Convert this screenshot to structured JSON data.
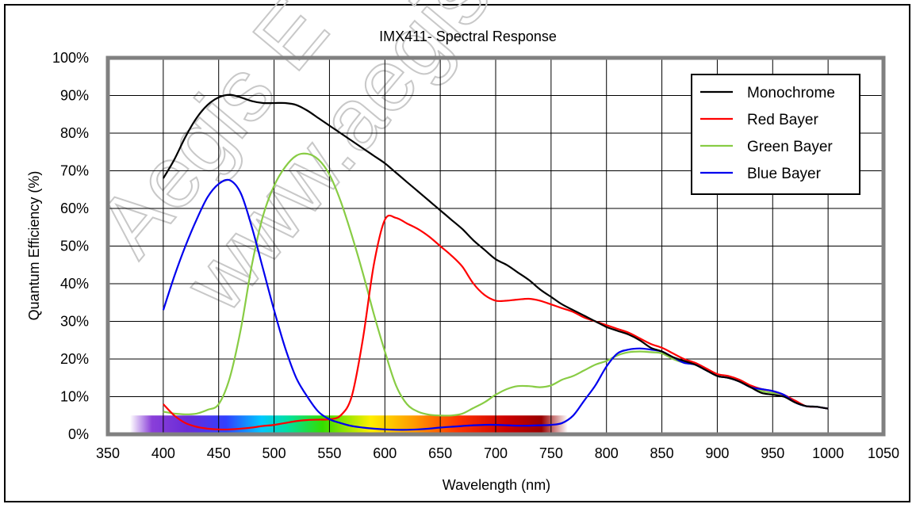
{
  "chart_data": {
    "type": "line",
    "title": "IMX411- Spectral Response",
    "xlabel": "Wavelength (nm)",
    "ylabel": "Quantum Efficiency (%)",
    "xlim": [
      350,
      1050
    ],
    "ylim": [
      0,
      100
    ],
    "x_ticks": [
      350,
      400,
      450,
      500,
      550,
      600,
      650,
      700,
      750,
      800,
      850,
      900,
      950,
      1000,
      1050
    ],
    "y_ticks": [
      0,
      10,
      20,
      30,
      40,
      50,
      60,
      70,
      80,
      90,
      100
    ],
    "x_tick_labels": [
      "350",
      "400",
      "450",
      "500",
      "550",
      "600",
      "650",
      "700",
      "750",
      "800",
      "850",
      "900",
      "950",
      "1000",
      "1050"
    ],
    "y_tick_labels": [
      "0%",
      "10%",
      "20%",
      "30%",
      "40%",
      "50%",
      "60%",
      "70%",
      "80%",
      "90%",
      "100%"
    ],
    "grid": true,
    "legend_position": "top-right",
    "spectrum_band": [
      370,
      765
    ],
    "watermark": [
      "Aegis E",
      "www.aegis"
    ],
    "series": [
      {
        "name": "Monochrome",
        "color": "#000000",
        "points": [
          [
            400,
            68
          ],
          [
            410,
            73
          ],
          [
            420,
            79
          ],
          [
            430,
            84
          ],
          [
            440,
            87.5
          ],
          [
            450,
            89.5
          ],
          [
            460,
            90.2
          ],
          [
            470,
            89.5
          ],
          [
            480,
            88.5
          ],
          [
            490,
            88
          ],
          [
            500,
            88
          ],
          [
            510,
            88
          ],
          [
            520,
            87.5
          ],
          [
            530,
            86
          ],
          [
            540,
            84
          ],
          [
            550,
            82
          ],
          [
            560,
            80
          ],
          [
            570,
            78
          ],
          [
            580,
            76
          ],
          [
            590,
            74
          ],
          [
            600,
            72
          ],
          [
            610,
            69.5
          ],
          [
            620,
            67
          ],
          [
            630,
            64.5
          ],
          [
            640,
            62
          ],
          [
            650,
            59.5
          ],
          [
            660,
            57
          ],
          [
            670,
            54.5
          ],
          [
            680,
            51.5
          ],
          [
            690,
            49
          ],
          [
            700,
            46.5
          ],
          [
            710,
            45
          ],
          [
            720,
            43
          ],
          [
            730,
            41
          ],
          [
            740,
            38.5
          ],
          [
            750,
            36.5
          ],
          [
            760,
            34.5
          ],
          [
            770,
            33
          ],
          [
            780,
            31.5
          ],
          [
            790,
            30
          ],
          [
            800,
            28.5
          ],
          [
            810,
            27.5
          ],
          [
            820,
            26.5
          ],
          [
            830,
            25
          ],
          [
            840,
            23
          ],
          [
            850,
            22
          ],
          [
            860,
            20.5
          ],
          [
            870,
            19.5
          ],
          [
            880,
            18.5
          ],
          [
            890,
            17
          ],
          [
            900,
            15.5
          ],
          [
            910,
            15
          ],
          [
            920,
            14
          ],
          [
            930,
            12.5
          ],
          [
            940,
            11
          ],
          [
            950,
            10.5
          ],
          [
            960,
            10
          ],
          [
            970,
            8.5
          ],
          [
            980,
            7.5
          ],
          [
            990,
            7.3
          ],
          [
            1000,
            6.8
          ]
        ]
      },
      {
        "name": "Red Bayer",
        "color": "#ff0000",
        "points": [
          [
            400,
            8
          ],
          [
            410,
            5
          ],
          [
            420,
            3
          ],
          [
            430,
            2
          ],
          [
            440,
            1.5
          ],
          [
            450,
            1.3
          ],
          [
            460,
            1.3
          ],
          [
            470,
            1.5
          ],
          [
            480,
            1.8
          ],
          [
            490,
            2.2
          ],
          [
            500,
            2.5
          ],
          [
            510,
            3
          ],
          [
            520,
            3.5
          ],
          [
            530,
            3.8
          ],
          [
            540,
            3.9
          ],
          [
            550,
            4
          ],
          [
            560,
            5
          ],
          [
            570,
            10
          ],
          [
            580,
            25
          ],
          [
            590,
            45
          ],
          [
            600,
            57
          ],
          [
            610,
            57.5
          ],
          [
            620,
            56
          ],
          [
            630,
            54.5
          ],
          [
            640,
            52.5
          ],
          [
            650,
            50
          ],
          [
            660,
            47.5
          ],
          [
            670,
            44.5
          ],
          [
            680,
            40
          ],
          [
            690,
            37
          ],
          [
            700,
            35.5
          ],
          [
            710,
            35.5
          ],
          [
            720,
            35.8
          ],
          [
            730,
            36
          ],
          [
            740,
            35.5
          ],
          [
            750,
            34.5
          ],
          [
            760,
            33.5
          ],
          [
            770,
            32.5
          ],
          [
            780,
            31
          ],
          [
            790,
            30
          ],
          [
            800,
            29
          ],
          [
            810,
            28
          ],
          [
            820,
            27
          ],
          [
            830,
            25.5
          ],
          [
            840,
            24
          ],
          [
            850,
            23
          ],
          [
            860,
            21.5
          ],
          [
            870,
            20
          ],
          [
            880,
            19
          ],
          [
            890,
            17.5
          ],
          [
            900,
            16
          ],
          [
            910,
            15.5
          ],
          [
            920,
            14.5
          ],
          [
            930,
            13
          ],
          [
            940,
            12
          ],
          [
            950,
            11.5
          ],
          [
            960,
            10.5
          ],
          [
            970,
            9
          ],
          [
            980,
            7.5
          ],
          [
            990,
            7.3
          ],
          [
            1000,
            6.8
          ]
        ]
      },
      {
        "name": "Green Bayer",
        "color": "#88cc44",
        "points": [
          [
            400,
            6
          ],
          [
            410,
            5.5
          ],
          [
            420,
            5.3
          ],
          [
            430,
            5.5
          ],
          [
            440,
            6.5
          ],
          [
            450,
            8
          ],
          [
            460,
            15
          ],
          [
            470,
            28
          ],
          [
            480,
            45
          ],
          [
            490,
            58
          ],
          [
            500,
            66
          ],
          [
            510,
            71
          ],
          [
            520,
            74
          ],
          [
            530,
            74.5
          ],
          [
            540,
            73
          ],
          [
            550,
            69
          ],
          [
            560,
            62
          ],
          [
            570,
            53
          ],
          [
            580,
            43
          ],
          [
            590,
            32
          ],
          [
            600,
            22
          ],
          [
            610,
            13
          ],
          [
            620,
            8
          ],
          [
            630,
            6
          ],
          [
            640,
            5.2
          ],
          [
            650,
            5
          ],
          [
            660,
            5
          ],
          [
            670,
            5.5
          ],
          [
            680,
            7
          ],
          [
            690,
            8.5
          ],
          [
            700,
            10.5
          ],
          [
            710,
            12
          ],
          [
            720,
            12.8
          ],
          [
            730,
            12.8
          ],
          [
            740,
            12.5
          ],
          [
            750,
            13
          ],
          [
            760,
            14.5
          ],
          [
            770,
            15.5
          ],
          [
            780,
            17
          ],
          [
            790,
            18.5
          ],
          [
            800,
            19.5
          ],
          [
            810,
            21
          ],
          [
            820,
            21.8
          ],
          [
            830,
            22
          ],
          [
            840,
            21.8
          ],
          [
            850,
            21.5
          ],
          [
            860,
            20
          ],
          [
            870,
            19
          ],
          [
            880,
            18.5
          ],
          [
            890,
            17
          ],
          [
            900,
            15.5
          ],
          [
            910,
            15
          ],
          [
            920,
            14
          ],
          [
            930,
            12.5
          ],
          [
            940,
            11.5
          ],
          [
            950,
            11
          ],
          [
            960,
            10.5
          ],
          [
            970,
            8.5
          ],
          [
            980,
            7.5
          ],
          [
            990,
            7.3
          ],
          [
            1000,
            6.8
          ]
        ]
      },
      {
        "name": "Blue Bayer",
        "color": "#0000ee",
        "points": [
          [
            400,
            33
          ],
          [
            410,
            42
          ],
          [
            420,
            50
          ],
          [
            430,
            57
          ],
          [
            440,
            63
          ],
          [
            450,
            66.5
          ],
          [
            460,
            67.5
          ],
          [
            470,
            64
          ],
          [
            480,
            55
          ],
          [
            490,
            44
          ],
          [
            500,
            33
          ],
          [
            510,
            23
          ],
          [
            520,
            15
          ],
          [
            530,
            10
          ],
          [
            540,
            6
          ],
          [
            550,
            4
          ],
          [
            560,
            3
          ],
          [
            570,
            2.2
          ],
          [
            580,
            1.8
          ],
          [
            590,
            1.5
          ],
          [
            600,
            1.3
          ],
          [
            610,
            1.2
          ],
          [
            620,
            1.2
          ],
          [
            630,
            1.3
          ],
          [
            640,
            1.5
          ],
          [
            650,
            1.8
          ],
          [
            660,
            2
          ],
          [
            670,
            2.2
          ],
          [
            680,
            2.4
          ],
          [
            690,
            2.5
          ],
          [
            700,
            2.5
          ],
          [
            710,
            2.4
          ],
          [
            720,
            2.3
          ],
          [
            730,
            2.3
          ],
          [
            740,
            2.4
          ],
          [
            750,
            2.5
          ],
          [
            760,
            3
          ],
          [
            770,
            5
          ],
          [
            780,
            9
          ],
          [
            790,
            13
          ],
          [
            800,
            18
          ],
          [
            810,
            21.5
          ],
          [
            820,
            22.5
          ],
          [
            830,
            22.8
          ],
          [
            840,
            22.5
          ],
          [
            850,
            22
          ],
          [
            860,
            20.5
          ],
          [
            870,
            19
          ],
          [
            880,
            18.5
          ],
          [
            890,
            17
          ],
          [
            900,
            15.5
          ],
          [
            910,
            15
          ],
          [
            920,
            14
          ],
          [
            930,
            12.5
          ],
          [
            940,
            12
          ],
          [
            950,
            11.5
          ],
          [
            960,
            10.5
          ],
          [
            970,
            8.5
          ],
          [
            980,
            7.5
          ],
          [
            990,
            7.3
          ],
          [
            1000,
            6.8
          ]
        ]
      }
    ]
  }
}
